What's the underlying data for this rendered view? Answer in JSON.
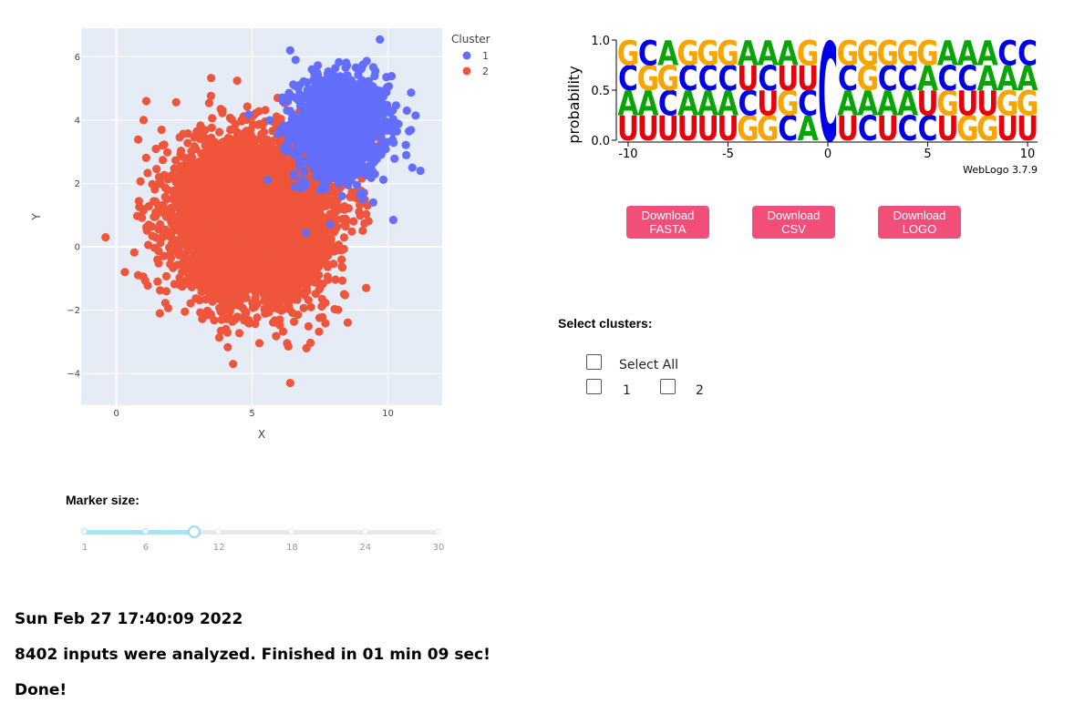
{
  "scatter": {
    "legend_title": "Cluster",
    "legend": [
      {
        "name": "1",
        "color": "#636efa"
      },
      {
        "name": "2",
        "color": "#ef553b"
      }
    ],
    "xlabel": "X",
    "ylabel": "Y",
    "xticks": [
      "0",
      "5",
      "10"
    ],
    "yticks": [
      "6",
      "4",
      "2",
      "0",
      "−2",
      "−4"
    ]
  },
  "chart_data": {
    "type": "scatter",
    "xlabel": "X",
    "ylabel": "Y",
    "xlim": [
      -1.3,
      12
    ],
    "ylim": [
      -5,
      6.9
    ],
    "grid": true,
    "legend_position": "top-right",
    "series": [
      {
        "name": "1",
        "color": "#636efa",
        "center": [
          8.3,
          3.8
        ],
        "spread": [
          0.85,
          0.8
        ],
        "count": 1400,
        "outliers": [
          [
            6.4,
            6.2
          ],
          [
            6.6,
            5.9
          ],
          [
            10.7,
            4.3
          ],
          [
            11.2,
            2.4
          ],
          [
            10.9,
            2.5
          ],
          [
            10.2,
            0.85
          ],
          [
            7.2,
            5.6
          ]
        ]
      },
      {
        "name": "2",
        "color": "#ef553b",
        "center": [
          5.0,
          0.9
        ],
        "spread": [
          1.3,
          1.15
        ],
        "count": 7000,
        "outliers": [
          [
            -0.4,
            0.3
          ],
          [
            1.1,
            4.6
          ],
          [
            1.0,
            4.0
          ],
          [
            4.3,
            -3.7
          ],
          [
            6.4,
            -4.3
          ],
          [
            7.0,
            -3.2
          ],
          [
            9.2,
            -1.3
          ],
          [
            1.7,
            3.2
          ],
          [
            1.6,
            -2.1
          ]
        ]
      }
    ]
  },
  "marker": {
    "label": "Marker size:",
    "min": 1,
    "max": 30,
    "value": 10,
    "marks": [
      "1",
      "6",
      "12",
      "18",
      "24",
      "30"
    ]
  },
  "status": {
    "timestamp": "Sun Feb 27 17:40:09 2022",
    "summary": "8402 inputs were analyzed. Finished in 01 min 09 sec!",
    "done": "Done!"
  },
  "logo": {
    "ylabel": "probability",
    "yticks": [
      "1.0",
      "0.5",
      "0.0"
    ],
    "xticks": [
      "-10",
      "-5",
      "0",
      "5",
      "10"
    ],
    "credit": "WebLogo 3.7.9",
    "colors": {
      "G": "#f9a500",
      "C": "#0000e6",
      "A": "#07a505",
      "U": "#e8000b"
    },
    "columns": [
      [
        "U",
        "A",
        "C",
        "G"
      ],
      [
        "U",
        "A",
        "G",
        "C"
      ],
      [
        "U",
        "C",
        "G",
        "A"
      ],
      [
        "U",
        "A",
        "C",
        "G"
      ],
      [
        "U",
        "A",
        "C",
        "G"
      ],
      [
        "U",
        "A",
        "C",
        "G"
      ],
      [
        "G",
        "C",
        "U",
        "A"
      ],
      [
        "G",
        "U",
        "C",
        "A"
      ],
      [
        "C",
        "G",
        "U",
        "A"
      ],
      [
        "A",
        "C",
        "U",
        "G"
      ],
      [
        "C"
      ],
      [
        "U",
        "A",
        "C",
        "G"
      ],
      [
        "C",
        "A",
        "G",
        "G"
      ],
      [
        "U",
        "A",
        "C",
        "G"
      ],
      [
        "C",
        "A",
        "C",
        "G"
      ],
      [
        "C",
        "U",
        "A",
        "G"
      ],
      [
        "U",
        "G",
        "C",
        "A"
      ],
      [
        "G",
        "U",
        "C",
        "A"
      ],
      [
        "G",
        "U",
        "A",
        "A"
      ],
      [
        "U",
        "G",
        "A",
        "C"
      ],
      [
        "U",
        "G",
        "A",
        "C"
      ]
    ]
  },
  "downloads": [
    {
      "line1": "Download",
      "line2": "FASTA"
    },
    {
      "line1": "Download",
      "line2": "CSV"
    },
    {
      "line1": "Download",
      "line2": "LOGO"
    }
  ],
  "clusters": {
    "title": "Select clusters:",
    "select_all": "Select All",
    "options": [
      "1",
      "2"
    ]
  }
}
